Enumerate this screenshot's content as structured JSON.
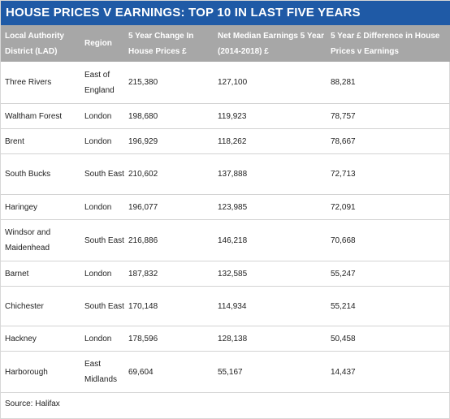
{
  "title": "HOUSE PRICES V EARNINGS: TOP 10 IN LAST FIVE YEARS",
  "columns": [
    "Local Authority District (LAD)",
    "Region",
    "5 Year Change In House Prices £",
    "Net Median Earnings 5 Year (2014-2018) £",
    "5 Year £ Difference in House Prices v Earnings"
  ],
  "rows": [
    {
      "lad": "Three Rivers",
      "region": "East of England",
      "change": "215,380",
      "earnings": "127,100",
      "difference": "88,281"
    },
    {
      "lad": "Waltham Forest",
      "region": "London",
      "change": "198,680",
      "earnings": "119,923",
      "difference": "78,757"
    },
    {
      "lad": "Brent",
      "region": "London",
      "change": "196,929",
      "earnings": "118,262",
      "difference": "78,667"
    },
    {
      "lad": "South Bucks",
      "region": "South East",
      "change": "210,602",
      "earnings": "137,888",
      "difference": "72,713"
    },
    {
      "lad": "Haringey",
      "region": "London",
      "change": "196,077",
      "earnings": "123,985",
      "difference": "72,091"
    },
    {
      "lad": "Windsor and Maidenhead",
      "region": "South East",
      "change": "216,886",
      "earnings": "146,218",
      "difference": "70,668"
    },
    {
      "lad": "Barnet",
      "region": "London",
      "change": "187,832",
      "earnings": "132,585",
      "difference": "55,247"
    },
    {
      "lad": "Chichester",
      "region": "South East",
      "change": "170,148",
      "earnings": "114,934",
      "difference": "55,214"
    },
    {
      "lad": "Hackney",
      "region": "London",
      "change": "178,596",
      "earnings": "128,138",
      "difference": "50,458"
    },
    {
      "lad": "Harborough",
      "region": "East Midlands",
      "change": "69,604",
      "earnings": "55,167",
      "difference": "14,437"
    }
  ],
  "source": "Source: Halifax",
  "colors": {
    "title_bar": "#1f5aa6",
    "header_row": "#a7a7a7",
    "row_divider": "#d3d3d3"
  }
}
